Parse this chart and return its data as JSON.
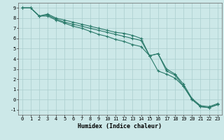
{
  "title": "",
  "xlabel": "Humidex (Indice chaleur)",
  "xlim": [
    -0.5,
    23.5
  ],
  "ylim": [
    -1.5,
    9.5
  ],
  "xticks": [
    0,
    1,
    2,
    3,
    4,
    5,
    6,
    7,
    8,
    9,
    10,
    11,
    12,
    13,
    14,
    15,
    16,
    17,
    18,
    19,
    20,
    21,
    22,
    23
  ],
  "yticks": [
    -1,
    0,
    1,
    2,
    3,
    4,
    5,
    6,
    7,
    8,
    9
  ],
  "background_color": "#cce8e8",
  "grid_color": "#aacece",
  "line_color": "#2a7a6a",
  "line1_x": [
    0,
    1,
    2,
    3,
    4,
    5,
    6,
    7,
    8,
    9,
    10,
    11,
    12,
    13,
    14,
    15,
    16,
    17,
    18,
    19,
    20,
    21,
    22,
    23
  ],
  "line1_y": [
    9.0,
    9.0,
    8.2,
    8.4,
    8.0,
    7.8,
    7.6,
    7.4,
    7.2,
    7.0,
    6.8,
    6.6,
    6.5,
    6.3,
    6.0,
    4.3,
    4.5,
    3.0,
    2.5,
    1.5,
    0.1,
    -0.6,
    -0.7,
    -0.4
  ],
  "line2_x": [
    0,
    1,
    2,
    3,
    4,
    5,
    6,
    7,
    8,
    9,
    10,
    11,
    12,
    13,
    14,
    15,
    16,
    17,
    18,
    19,
    20,
    21,
    22,
    23
  ],
  "line2_y": [
    9.0,
    9.0,
    8.2,
    8.3,
    7.9,
    7.6,
    7.4,
    7.2,
    7.0,
    6.8,
    6.6,
    6.4,
    6.2,
    6.0,
    5.8,
    4.3,
    4.5,
    2.8,
    2.4,
    1.3,
    0.0,
    -0.7,
    -0.8,
    -0.5
  ],
  "line3_x": [
    0,
    1,
    2,
    3,
    4,
    5,
    6,
    7,
    8,
    9,
    10,
    11,
    12,
    13,
    14,
    15,
    16,
    17,
    18,
    19,
    20,
    21,
    22,
    23
  ],
  "line3_y": [
    9.0,
    9.0,
    8.2,
    8.2,
    7.8,
    7.5,
    7.2,
    7.0,
    6.7,
    6.4,
    6.2,
    5.9,
    5.7,
    5.4,
    5.2,
    4.3,
    2.8,
    2.5,
    2.1,
    1.3,
    0.0,
    -0.7,
    -0.8,
    -0.5
  ],
  "tick_fontsize": 5,
  "xlabel_fontsize": 6,
  "marker_size": 3,
  "linewidth": 0.8
}
